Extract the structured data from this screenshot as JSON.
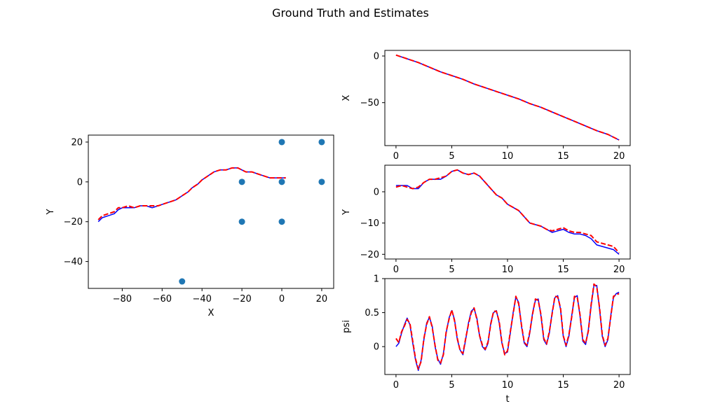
{
  "figure": {
    "title": "Ground Truth and Estimates"
  },
  "colors": {
    "ground_truth": "#0000ff",
    "estimate": "#ff0000",
    "landmarks": "#1f77b4",
    "axes": "#000000"
  },
  "chart_data": [
    {
      "type": "scatter",
      "id": "xy",
      "xlabel": "X",
      "ylabel": "Y",
      "xlim": [
        -97,
        26
      ],
      "ylim": [
        -53.5,
        23.5
      ],
      "xticks": [
        -80,
        -60,
        -40,
        -20,
        0,
        20
      ],
      "yticks": [
        -40,
        -20,
        0,
        20
      ],
      "landmarks": {
        "x": [
          0,
          20,
          -20,
          0,
          20,
          -20,
          0,
          -50
        ],
        "y": [
          20,
          20,
          0,
          0,
          0,
          -20,
          -20,
          -50
        ]
      },
      "series": [
        {
          "style": "solid",
          "x": [
            -92,
            -90,
            -87,
            -84,
            -82,
            -80,
            -77,
            -74,
            -71,
            -68,
            -65,
            -62,
            -59,
            -56,
            -53,
            -50,
            -47,
            -45,
            -42,
            -40,
            -37,
            -34,
            -31,
            -28,
            -25,
            -22,
            -20,
            -18,
            -15,
            -12,
            -9,
            -6,
            -3,
            0,
            2
          ],
          "y": [
            -20,
            -18,
            -17,
            -16,
            -14,
            -13,
            -13,
            -13,
            -12,
            -12,
            -13,
            -12,
            -11,
            -10,
            -9,
            -7,
            -5,
            -3,
            -1,
            1,
            3,
            5,
            6,
            6,
            7,
            7,
            6,
            5,
            5,
            4,
            3,
            2,
            2,
            2,
            2
          ]
        },
        {
          "style": "dashed",
          "x": [
            -92,
            -90,
            -87,
            -84,
            -82,
            -80,
            -77,
            -74,
            -71,
            -68,
            -65,
            -62,
            -59,
            -56,
            -53,
            -50,
            -47,
            -45,
            -42,
            -40,
            -37,
            -34,
            -31,
            -28,
            -25,
            -22,
            -20,
            -18,
            -15,
            -12,
            -9,
            -6,
            -3,
            0,
            2
          ],
          "y": [
            -19,
            -17,
            -16,
            -15,
            -13,
            -13,
            -12,
            -13,
            -12,
            -12,
            -12,
            -12,
            -11,
            -10,
            -9,
            -7,
            -5,
            -3,
            -1,
            1,
            3,
            5,
            6,
            6,
            7,
            7,
            6,
            5,
            5,
            4,
            3,
            2,
            2,
            2,
            2
          ]
        }
      ]
    },
    {
      "type": "line",
      "id": "x_t",
      "xlabel": "",
      "ylabel": "X",
      "xlim": [
        -1,
        21
      ],
      "ylim": [
        -96,
        6
      ],
      "xticks": [
        0,
        5,
        10,
        15,
        20
      ],
      "yticks": [
        -50,
        0
      ],
      "series": [
        {
          "style": "solid",
          "x": [
            0,
            1,
            2,
            3,
            4,
            5,
            6,
            7,
            8,
            9,
            10,
            11,
            12,
            13,
            14,
            15,
            16,
            17,
            18,
            19,
            20
          ],
          "y": [
            1,
            -3,
            -7,
            -12,
            -17,
            -21,
            -25,
            -30,
            -34,
            -38,
            -42,
            -46,
            -51,
            -55,
            -60,
            -65,
            -70,
            -75,
            -80,
            -84,
            -90
          ]
        },
        {
          "style": "dashed",
          "x": [
            0,
            1,
            2,
            3,
            4,
            5,
            6,
            7,
            8,
            9,
            10,
            11,
            12,
            13,
            14,
            15,
            16,
            17,
            18,
            19,
            20
          ],
          "y": [
            1,
            -3,
            -7,
            -12,
            -17,
            -21,
            -25,
            -30,
            -34,
            -38,
            -42,
            -46,
            -51,
            -55,
            -60,
            -65,
            -70,
            -75,
            -80,
            -84,
            -90
          ]
        }
      ]
    },
    {
      "type": "line",
      "id": "y_t",
      "xlabel": "",
      "ylabel": "Y",
      "xlim": [
        -1,
        21
      ],
      "ylim": [
        -21.5,
        8.5
      ],
      "xticks": [
        0,
        5,
        10,
        15,
        20
      ],
      "yticks": [
        -20,
        -10,
        0
      ],
      "series": [
        {
          "style": "solid",
          "x": [
            0,
            0.5,
            1,
            1.5,
            2,
            2.5,
            3,
            3.5,
            4,
            4.5,
            5,
            5.5,
            6,
            6.5,
            7,
            7.5,
            8,
            8.5,
            9,
            9.5,
            10,
            10.5,
            11,
            11.5,
            12,
            12.5,
            13,
            13.5,
            14,
            14.5,
            15,
            15.5,
            16,
            16.5,
            17,
            17.5,
            18,
            18.5,
            19,
            19.5,
            20
          ],
          "y": [
            2,
            2,
            2,
            1,
            1,
            3,
            4,
            4,
            4,
            5,
            6.5,
            7,
            6,
            5.5,
            6,
            5,
            3,
            1,
            -1,
            -2,
            -4,
            -5,
            -6,
            -8,
            -10,
            -10.5,
            -11,
            -12,
            -13,
            -12.5,
            -12,
            -13,
            -13.5,
            -13.5,
            -14,
            -15,
            -17,
            -17.5,
            -18,
            -18.5,
            -20
          ]
        },
        {
          "style": "dashed",
          "x": [
            0,
            0.5,
            1,
            1.5,
            2,
            2.5,
            3,
            3.5,
            4,
            4.5,
            5,
            5.5,
            6,
            6.5,
            7,
            7.5,
            8,
            8.5,
            9,
            9.5,
            10,
            10.5,
            11,
            11.5,
            12,
            12.5,
            13,
            13.5,
            14,
            14.5,
            15,
            15.5,
            16,
            16.5,
            17,
            17.5,
            18,
            18.5,
            19,
            19.5,
            20
          ],
          "y": [
            1.5,
            2,
            1.5,
            1,
            1.5,
            3,
            4,
            4,
            4.5,
            5,
            6.5,
            7,
            6,
            5.5,
            6,
            5,
            3,
            1,
            -1,
            -2,
            -4,
            -5,
            -6,
            -8,
            -10,
            -10.5,
            -11,
            -12,
            -12.5,
            -12,
            -11.5,
            -12.5,
            -13,
            -13,
            -13.5,
            -14,
            -16,
            -16.5,
            -17,
            -17.5,
            -19.5
          ]
        }
      ]
    },
    {
      "type": "line",
      "id": "psi_t",
      "xlabel": "t",
      "ylabel": "psi",
      "xlim": [
        -1,
        21
      ],
      "ylim": [
        -0.41,
        1.0
      ],
      "xticks": [
        0,
        5,
        10,
        15,
        20
      ],
      "yticks": [
        0.0,
        0.5,
        1.0
      ],
      "series": [
        {
          "style": "solid",
          "x": [
            0,
            0.25,
            0.5,
            0.75,
            1,
            1.25,
            1.5,
            1.75,
            2,
            2.25,
            2.5,
            2.75,
            3,
            3.25,
            3.5,
            3.75,
            4,
            4.25,
            4.5,
            4.75,
            5,
            5.25,
            5.5,
            5.75,
            6,
            6.25,
            6.5,
            6.75,
            7,
            7.25,
            7.5,
            7.75,
            8,
            8.25,
            8.5,
            8.75,
            9,
            9.25,
            9.5,
            9.75,
            10,
            10.25,
            10.5,
            10.75,
            11,
            11.25,
            11.5,
            11.75,
            12,
            12.25,
            12.5,
            12.75,
            13,
            13.25,
            13.5,
            13.75,
            14,
            14.25,
            14.5,
            14.75,
            15,
            15.25,
            15.5,
            15.75,
            16,
            16.25,
            16.5,
            16.75,
            17,
            17.25,
            17.5,
            17.75,
            18,
            18.25,
            18.5,
            18.75,
            19,
            19.25,
            19.5,
            19.75,
            20
          ],
          "y": [
            0.0,
            0.05,
            0.2,
            0.32,
            0.42,
            0.32,
            0.05,
            -0.2,
            -0.35,
            -0.2,
            0.1,
            0.35,
            0.43,
            0.3,
            0.0,
            -0.18,
            -0.26,
            -0.1,
            0.2,
            0.42,
            0.53,
            0.4,
            0.1,
            -0.05,
            -0.12,
            0.1,
            0.35,
            0.52,
            0.56,
            0.42,
            0.15,
            0.0,
            -0.05,
            0.05,
            0.35,
            0.5,
            0.53,
            0.35,
            0.05,
            -0.1,
            -0.08,
            0.2,
            0.5,
            0.73,
            0.65,
            0.3,
            0.05,
            0.0,
            0.2,
            0.5,
            0.68,
            0.7,
            0.45,
            0.1,
            0.03,
            0.2,
            0.5,
            0.72,
            0.75,
            0.55,
            0.15,
            0.0,
            0.15,
            0.45,
            0.72,
            0.75,
            0.45,
            0.08,
            0.03,
            0.25,
            0.6,
            0.9,
            0.9,
            0.55,
            0.15,
            0.0,
            0.1,
            0.45,
            0.72,
            0.78,
            0.8
          ]
        },
        {
          "style": "dashed",
          "x": [
            0,
            0.25,
            0.5,
            0.75,
            1,
            1.25,
            1.5,
            1.75,
            2,
            2.25,
            2.5,
            2.75,
            3,
            3.25,
            3.5,
            3.75,
            4,
            4.25,
            4.5,
            4.75,
            5,
            5.25,
            5.5,
            5.75,
            6,
            6.25,
            6.5,
            6.75,
            7,
            7.25,
            7.5,
            7.75,
            8,
            8.25,
            8.5,
            8.75,
            9,
            9.25,
            9.5,
            9.75,
            10,
            10.25,
            10.5,
            10.75,
            11,
            11.25,
            11.5,
            11.75,
            12,
            12.25,
            12.5,
            12.75,
            13,
            13.25,
            13.5,
            13.75,
            14,
            14.25,
            14.5,
            14.75,
            15,
            15.25,
            15.5,
            15.75,
            16,
            16.25,
            16.5,
            16.75,
            17,
            17.25,
            17.5,
            17.75,
            18,
            18.25,
            18.5,
            18.75,
            19,
            19.25,
            19.5,
            19.75,
            20
          ],
          "y": [
            0.12,
            0.06,
            0.22,
            0.3,
            0.4,
            0.34,
            0.08,
            -0.18,
            -0.33,
            -0.22,
            0.12,
            0.33,
            0.44,
            0.28,
            0.02,
            -0.2,
            -0.24,
            -0.12,
            0.22,
            0.4,
            0.54,
            0.38,
            0.12,
            -0.06,
            -0.1,
            0.12,
            0.33,
            0.5,
            0.57,
            0.4,
            0.16,
            0.02,
            -0.04,
            0.07,
            0.33,
            0.52,
            0.52,
            0.37,
            0.06,
            -0.12,
            -0.06,
            0.22,
            0.48,
            0.74,
            0.63,
            0.32,
            0.06,
            0.02,
            0.22,
            0.48,
            0.7,
            0.68,
            0.47,
            0.12,
            0.04,
            0.22,
            0.48,
            0.74,
            0.73,
            0.57,
            0.16,
            0.02,
            0.17,
            0.43,
            0.74,
            0.73,
            0.47,
            0.1,
            0.05,
            0.23,
            0.62,
            0.92,
            0.88,
            0.57,
            0.17,
            0.02,
            0.12,
            0.43,
            0.74,
            0.76,
            0.78
          ]
        }
      ]
    }
  ]
}
